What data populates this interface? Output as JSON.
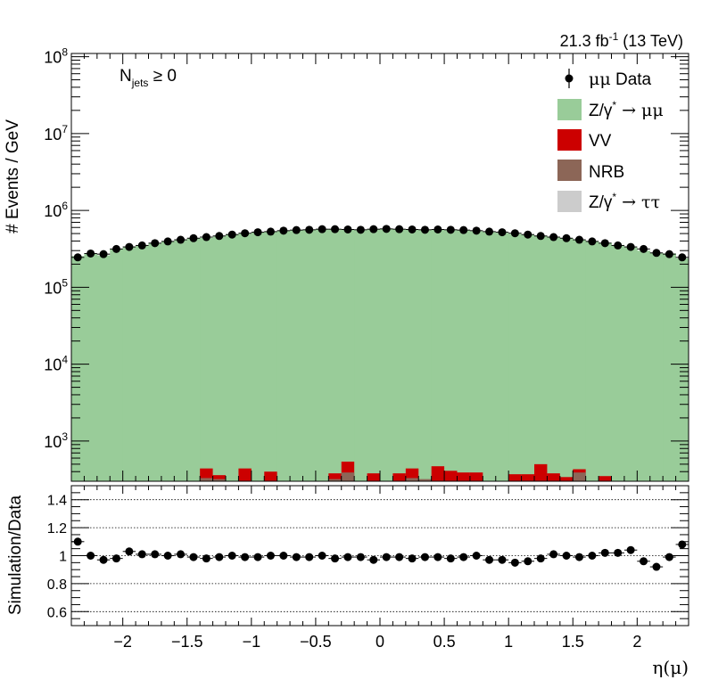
{
  "header": {
    "lumi_prefix": "21.3 fb",
    "lumi_sup": "-1",
    "lumi_suffix": " (13 TeV)"
  },
  "annotation": {
    "main": "N",
    "sub": "jets",
    "rest": " ≥ 0"
  },
  "legend": {
    "data": {
      "label_greek": "μμ",
      "label_text": " Data"
    },
    "zmm": {
      "pre": "Z/γ",
      "sup": "*",
      "post": " → μμ",
      "color": "#99cc99"
    },
    "vv": {
      "label": "VV",
      "color": "#cc0000"
    },
    "nrb": {
      "label": "NRB",
      "color": "#8c6657"
    },
    "ztt": {
      "pre": "Z/γ",
      "sup": "*",
      "post": " → ττ",
      "color": "#cccccc"
    }
  },
  "chart_data": [
    {
      "type": "bar",
      "stacked": true,
      "title": "",
      "ylabel": "# Events / GeV",
      "xlim": [
        -2.4,
        2.4
      ],
      "ylim_log": [
        300,
        110000000
      ],
      "yscale": "log",
      "yticks": [
        {
          "value": 1000,
          "mant": "10",
          "exp": "3"
        },
        {
          "value": 10000,
          "mant": "10",
          "exp": "4"
        },
        {
          "value": 100000,
          "mant": "10",
          "exp": "5"
        },
        {
          "value": 1000000,
          "mant": "10",
          "exp": "6"
        },
        {
          "value": 10000000,
          "mant": "10",
          "exp": "7"
        },
        {
          "value": 100000000,
          "mant": "10",
          "exp": "8"
        }
      ],
      "bins": 48,
      "data_points": [
        245000,
        275000,
        270000,
        315000,
        335000,
        350000,
        375000,
        395000,
        415000,
        435000,
        450000,
        465000,
        485000,
        505000,
        520000,
        530000,
        545000,
        555000,
        560000,
        570000,
        570000,
        565000,
        560000,
        570000,
        575000,
        570000,
        565000,
        560000,
        565000,
        560000,
        555000,
        545000,
        530000,
        520000,
        505000,
        485000,
        465000,
        450000,
        435000,
        415000,
        395000,
        375000,
        350000,
        335000,
        315000,
        280000,
        270000,
        245000
      ],
      "series": [
        {
          "name": "Z/γ* → μμ",
          "values": [
            255000,
            272000,
            260000,
            318000,
            340000,
            350000,
            378000,
            395000,
            418000,
            432000,
            440000,
            460000,
            487000,
            500000,
            515000,
            528000,
            545000,
            552000,
            560000,
            566000,
            566000,
            560000,
            556000,
            566000,
            575000,
            566000,
            558000,
            558000,
            560000,
            556000,
            556000,
            535000,
            522000,
            510000,
            495000,
            480000,
            467000,
            450000,
            435000,
            415000,
            400000,
            380000,
            350000,
            330000,
            300000,
            277000,
            276000,
            238000
          ]
        },
        {
          "name": "NRB",
          "values": [
            0,
            0,
            0,
            0,
            0,
            0,
            0,
            0,
            0,
            0,
            330,
            320,
            0,
            0,
            0,
            0,
            0,
            0,
            0,
            0,
            320,
            390,
            0,
            0,
            0,
            0,
            330,
            320,
            0,
            0,
            0,
            0,
            0,
            0,
            0,
            0,
            0,
            0,
            0,
            390,
            0,
            0,
            0,
            0,
            0,
            0,
            0,
            0
          ]
        },
        {
          "name": "VV",
          "values": [
            0,
            0,
            0,
            0,
            0,
            0,
            0,
            0,
            0,
            0,
            440,
            360,
            0,
            440,
            0,
            400,
            0,
            0,
            0,
            0,
            380,
            540,
            0,
            380,
            0,
            380,
            440,
            0,
            470,
            410,
            390,
            390,
            0,
            0,
            370,
            370,
            500,
            380,
            340,
            430,
            0,
            350,
            0,
            0,
            0,
            0,
            0,
            0
          ]
        }
      ]
    },
    {
      "type": "scatter",
      "ylabel": "Simulation/Data",
      "xlabel": "η(μ)",
      "ylim": [
        0.5,
        1.5
      ],
      "yticks": [
        0.6,
        0.8,
        1,
        1.2,
        1.4
      ],
      "gridlines": [
        0.6,
        0.8,
        1.0,
        1.2,
        1.4
      ],
      "xticks": [
        -2,
        -1.5,
        -1,
        -0.5,
        0,
        0.5,
        1,
        1.5,
        2
      ],
      "xtick_labels": [
        "−2",
        "−1.5",
        "−1",
        "−0.5",
        "0",
        "0.5",
        "1",
        "1.5",
        "2"
      ],
      "x": [
        -2.35,
        -2.25,
        -2.15,
        -2.05,
        -1.95,
        -1.85,
        -1.75,
        -1.65,
        -1.55,
        -1.45,
        -1.35,
        -1.25,
        -1.15,
        -1.05,
        -0.95,
        -0.85,
        -0.75,
        -0.65,
        -0.55,
        -0.45,
        -0.35,
        -0.25,
        -0.15,
        -0.05,
        0.05,
        0.15,
        0.25,
        0.35,
        0.45,
        0.55,
        0.65,
        0.75,
        0.85,
        0.95,
        1.05,
        1.15,
        1.25,
        1.35,
        1.45,
        1.55,
        1.65,
        1.75,
        1.85,
        1.95,
        2.05,
        2.15,
        2.25,
        2.35
      ],
      "values": [
        1.1,
        1.0,
        0.97,
        0.98,
        1.03,
        1.01,
        1.01,
        1.0,
        1.01,
        0.99,
        0.98,
        0.99,
        1.0,
        0.99,
        0.99,
        1.0,
        1.0,
        0.99,
        0.99,
        1.0,
        0.98,
        0.99,
        0.99,
        0.97,
        0.99,
        0.99,
        0.98,
        0.99,
        0.99,
        0.98,
        0.99,
        1.0,
        0.97,
        0.97,
        0.95,
        0.96,
        0.98,
        1.01,
        1.0,
        0.99,
        1.0,
        1.02,
        1.02,
        1.04,
        0.96,
        0.92,
        0.99,
        1.08
      ],
      "errors": [
        0.01,
        0.01,
        0.01,
        0.01,
        0.01,
        0.01,
        0.01,
        0.01,
        0.01,
        0.01,
        0.01,
        0.01,
        0.01,
        0.01,
        0.01,
        0.01,
        0.01,
        0.01,
        0.01,
        0.01,
        0.01,
        0.01,
        0.01,
        0.01,
        0.01,
        0.01,
        0.01,
        0.01,
        0.01,
        0.01,
        0.01,
        0.01,
        0.01,
        0.01,
        0.01,
        0.01,
        0.01,
        0.01,
        0.01,
        0.01,
        0.01,
        0.01,
        0.01,
        0.01,
        0.01,
        0.01,
        0.01,
        0.01
      ]
    }
  ]
}
